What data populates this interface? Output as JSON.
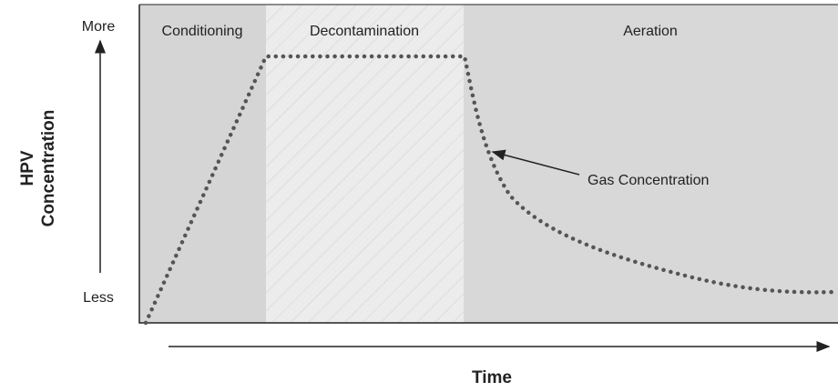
{
  "y_axis": {
    "label_lines": [
      "HPV",
      "Concentration"
    ],
    "top": "More",
    "bottom": "Less"
  },
  "x_axis": {
    "label": "Time"
  },
  "phases": [
    "Conditioning",
    "Decontamination",
    "Aeration"
  ],
  "annotation": "Gas Concentration"
}
